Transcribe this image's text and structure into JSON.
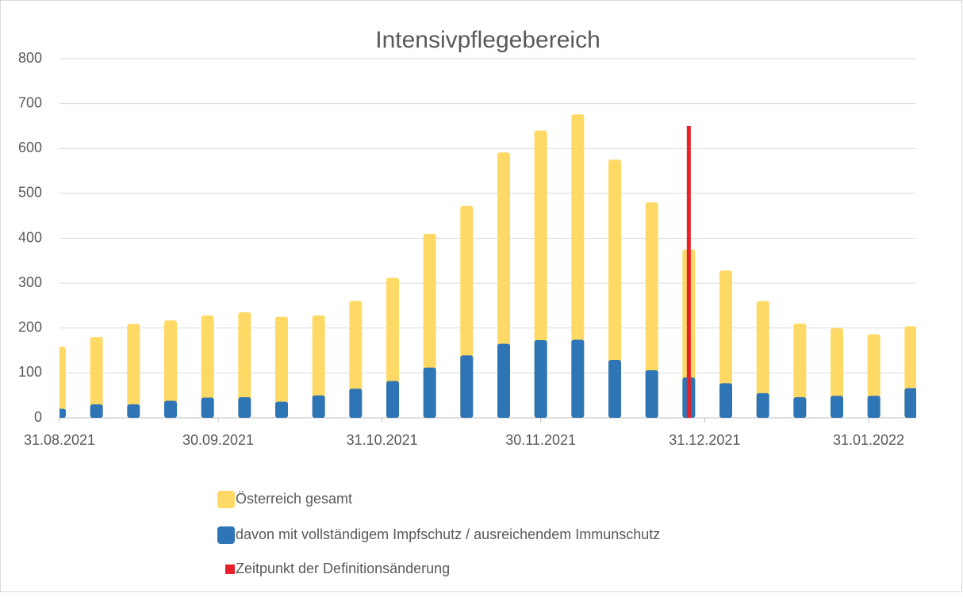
{
  "chart_data": {
    "type": "bar",
    "title": "Intensivpflegebereich",
    "x": [
      "31.08.2021",
      "07.09.2021",
      "14.09.2021",
      "21.09.2021",
      "28.09.2021",
      "05.10.2021",
      "12.10.2021",
      "19.10.2021",
      "26.10.2021",
      "02.11.2021",
      "09.11.2021",
      "16.11.2021",
      "23.11.2021",
      "30.11.2021",
      "07.12.2021",
      "14.12.2021",
      "21.12.2021",
      "28.12.2021",
      "04.01.2022",
      "11.01.2022",
      "18.01.2022",
      "25.01.2022",
      "01.02.2022",
      "08.02.2022"
    ],
    "series": [
      {
        "name": "Österreich gesamt",
        "color": "#ffd966",
        "values": [
          158,
          180,
          209,
          217,
          228,
          235,
          225,
          228,
          260,
          312,
          410,
          472,
          591,
          640,
          676,
          575,
          480,
          375,
          328,
          260,
          210,
          200,
          186,
          204
        ]
      },
      {
        "name": "davon mit vollständigem Impfschutz / ausreichendem Immunschutz",
        "color": "#2e75b6",
        "values": [
          20,
          30,
          30,
          38,
          45,
          46,
          36,
          50,
          65,
          82,
          112,
          139,
          165,
          173,
          174,
          129,
          106,
          90,
          77,
          55,
          46,
          49,
          49,
          66
        ]
      }
    ],
    "vline": {
      "name": "Zeitpunkt der Definitionsänderung",
      "color": "#e8202a",
      "x": "28.12.2021",
      "value": 650
    },
    "xlim": [
      "31.08.2021",
      "09.02.2022"
    ],
    "xticks": [
      "31.08.2021",
      "30.09.2021",
      "31.10.2021",
      "30.11.2021",
      "31.12.2021",
      "31.01.2022"
    ],
    "ylim": [
      0,
      800
    ],
    "yticks": [
      0,
      100,
      200,
      300,
      400,
      500,
      600,
      700,
      800
    ],
    "grid": true
  }
}
